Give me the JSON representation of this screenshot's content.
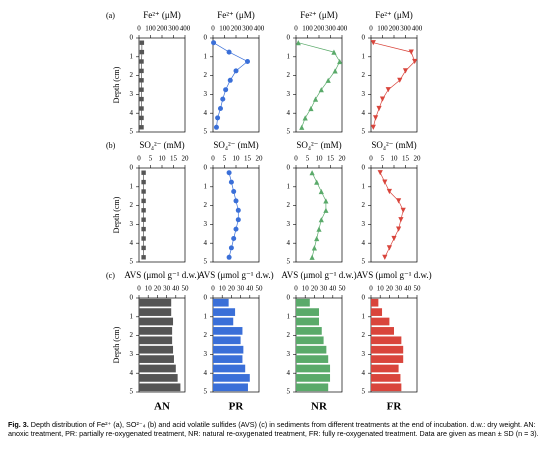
{
  "row_labels": [
    "(a)",
    "(b)",
    "(c)"
  ],
  "treatments": [
    "AN",
    "PR",
    "NR",
    "FR"
  ],
  "chart_data": [
    {
      "type": "line",
      "marker": "square",
      "color": "#555555",
      "xlabel": "Fe²⁺ (μM)",
      "ylabel": "Depth (cm)",
      "depth": [
        0.25,
        0.75,
        1.25,
        1.75,
        2.25,
        2.75,
        3.25,
        3.75,
        4.25,
        4.75
      ],
      "values": [
        25,
        25,
        22,
        22,
        22,
        22,
        22,
        22,
        22,
        22
      ],
      "xlim": [
        0,
        400
      ],
      "xticks": [
        0,
        100,
        200,
        300,
        400
      ],
      "ylim": [
        0,
        5
      ],
      "yticks": [
        0,
        1,
        2,
        3,
        4,
        5
      ]
    },
    {
      "type": "line",
      "marker": "circle",
      "color": "#3a6fd8",
      "xlabel": "Fe²⁺ (μM)",
      "depth": [
        0.25,
        0.75,
        1.25,
        1.75,
        2.25,
        2.75,
        3.25,
        3.75,
        4.25,
        4.75
      ],
      "values": [
        5,
        140,
        300,
        200,
        150,
        110,
        85,
        65,
        40,
        30
      ],
      "xlim": [
        0,
        400
      ],
      "xticks": [
        0,
        100,
        200,
        300,
        400
      ],
      "ylim": [
        0,
        5
      ],
      "yticks": [
        0,
        1,
        2,
        3,
        4,
        5
      ]
    },
    {
      "type": "line",
      "marker": "triangle-up",
      "color": "#5aaa6a",
      "xlabel": "Fe²⁺ (μM)",
      "depth": [
        0.25,
        0.75,
        1.25,
        1.75,
        2.25,
        2.75,
        3.25,
        3.75,
        4.25,
        4.75
      ],
      "values": [
        20,
        330,
        380,
        340,
        280,
        220,
        170,
        130,
        80,
        50
      ],
      "xlim": [
        0,
        400
      ],
      "xticks": [
        0,
        100,
        200,
        300,
        400
      ],
      "ylim": [
        0,
        5
      ],
      "yticks": [
        0,
        1,
        2,
        3,
        4,
        5
      ]
    },
    {
      "type": "line",
      "marker": "triangle-down",
      "color": "#d9453c",
      "xlabel": "Fe²⁺ (μM)",
      "depth": [
        0.25,
        0.75,
        1.25,
        1.75,
        2.25,
        2.75,
        3.25,
        3.75,
        4.25,
        4.75
      ],
      "values": [
        20,
        350,
        380,
        300,
        250,
        150,
        100,
        70,
        40,
        20
      ],
      "xlim": [
        0,
        400
      ],
      "xticks": [
        0,
        100,
        200,
        300,
        400
      ],
      "ylim": [
        0,
        5
      ],
      "yticks": [
        0,
        1,
        2,
        3,
        4,
        5
      ]
    },
    {
      "type": "line",
      "marker": "square",
      "color": "#555555",
      "xlabel": "SO₄²⁻ (mM)",
      "ylabel": "Depth (cm)",
      "depth": [
        0.25,
        0.75,
        1.25,
        1.75,
        2.25,
        2.75,
        3.25,
        3.75,
        4.25,
        4.75
      ],
      "values": [
        2,
        2,
        2,
        2,
        2,
        2,
        2,
        2,
        2,
        2
      ],
      "xlim": [
        0,
        20
      ],
      "xticks": [
        0,
        5,
        10,
        15,
        20
      ],
      "ylim": [
        0,
        5
      ],
      "yticks": [
        0,
        1,
        2,
        3,
        4,
        5
      ]
    },
    {
      "type": "line",
      "marker": "circle",
      "color": "#3a6fd8",
      "xlabel": "SO₄²⁻ (mM)",
      "depth": [
        0.25,
        0.75,
        1.25,
        1.75,
        2.25,
        2.75,
        3.25,
        3.75,
        4.25,
        4.75
      ],
      "values": [
        7,
        8,
        9,
        10,
        11,
        11,
        10,
        9,
        8,
        7
      ],
      "xlim": [
        0,
        20
      ],
      "xticks": [
        0,
        5,
        10,
        15,
        20
      ],
      "ylim": [
        0,
        5
      ],
      "yticks": [
        0,
        1,
        2,
        3,
        4,
        5
      ]
    },
    {
      "type": "line",
      "marker": "triangle-up",
      "color": "#5aaa6a",
      "xlabel": "SO₄²⁻ (mM)",
      "depth": [
        0.25,
        0.75,
        1.25,
        1.75,
        2.25,
        2.75,
        3.25,
        3.75,
        4.25,
        4.75
      ],
      "values": [
        7,
        9,
        11,
        13,
        13,
        11,
        10,
        9,
        8,
        7
      ],
      "xlim": [
        0,
        20
      ],
      "xticks": [
        0,
        5,
        10,
        15,
        20
      ],
      "ylim": [
        0,
        5
      ],
      "yticks": [
        0,
        1,
        2,
        3,
        4,
        5
      ]
    },
    {
      "type": "line",
      "marker": "triangle-down",
      "color": "#d9453c",
      "xlabel": "SO₄²⁻ (mM)",
      "depth": [
        0.25,
        0.75,
        1.25,
        1.75,
        2.25,
        2.75,
        3.25,
        3.75,
        4.25,
        4.75
      ],
      "values": [
        4,
        6,
        8,
        12,
        14,
        13,
        12,
        10,
        8,
        6
      ],
      "xlim": [
        0,
        20
      ],
      "xticks": [
        0,
        5,
        10,
        15,
        20
      ],
      "ylim": [
        0,
        5
      ],
      "yticks": [
        0,
        1,
        2,
        3,
        4,
        5
      ]
    },
    {
      "type": "bar",
      "color": "#555555",
      "xlabel": "AVS (μmol g⁻¹ d.w.)",
      "ylabel": "Depth (cm)",
      "depth": [
        0.25,
        0.75,
        1.25,
        1.75,
        2.25,
        2.75,
        3.25,
        3.75,
        4.25,
        4.75
      ],
      "values": [
        35,
        35,
        37,
        36,
        36,
        37,
        38,
        40,
        42,
        45
      ],
      "xlim": [
        0,
        50
      ],
      "xticks": [
        0,
        10,
        20,
        30,
        40,
        50
      ],
      "ylim": [
        0,
        5
      ],
      "yticks": [
        0,
        1,
        2,
        3,
        4,
        5
      ]
    },
    {
      "type": "bar",
      "color": "#3a6fd8",
      "xlabel": "AVS (μmol g⁻¹ d.w.)",
      "depth": [
        0.25,
        0.75,
        1.25,
        1.75,
        2.25,
        2.75,
        3.25,
        3.75,
        4.25,
        4.75
      ],
      "values": [
        17,
        24,
        22,
        32,
        30,
        33,
        32,
        35,
        40,
        38
      ],
      "xlim": [
        0,
        50
      ],
      "xticks": [
        0,
        10,
        20,
        30,
        40,
        50
      ],
      "ylim": [
        0,
        5
      ],
      "yticks": [
        0,
        1,
        2,
        3,
        4,
        5
      ]
    },
    {
      "type": "bar",
      "color": "#5aaa6a",
      "xlabel": "AVS (μmol g⁻¹ d.w.)",
      "depth": [
        0.25,
        0.75,
        1.25,
        1.75,
        2.25,
        2.75,
        3.25,
        3.75,
        4.25,
        4.75
      ],
      "values": [
        15,
        25,
        25,
        28,
        30,
        33,
        35,
        37,
        37,
        35
      ],
      "xlim": [
        0,
        50
      ],
      "xticks": [
        0,
        10,
        20,
        30,
        40,
        50
      ],
      "ylim": [
        0,
        5
      ],
      "yticks": [
        0,
        1,
        2,
        3,
        4,
        5
      ]
    },
    {
      "type": "bar",
      "color": "#d9453c",
      "xlabel": "AVS (μmol g⁻¹ d.w.)",
      "depth": [
        0.25,
        0.75,
        1.25,
        1.75,
        2.25,
        2.75,
        3.25,
        3.75,
        4.25,
        4.75
      ],
      "values": [
        8,
        12,
        20,
        25,
        33,
        35,
        35,
        30,
        32,
        33
      ],
      "xlim": [
        0,
        50
      ],
      "xticks": [
        0,
        10,
        20,
        30,
        40,
        50
      ],
      "ylim": [
        0,
        5
      ],
      "yticks": [
        0,
        1,
        2,
        3,
        4,
        5
      ]
    }
  ],
  "caption": {
    "label": "Fig. 3.",
    "text": "Depth distribution of Fe²⁺ (a), SO²⁻₄ (b) and acid volatile sulfides (AVS) (c) in sediments from different treatments at the end of incubation. d.w.: dry weight. AN: anoxic treatment, PR: partially re-oxygenated treatment, NR: natural re-oxygenated treatment, FR: fully re-oxygenated treatment. Data are given as mean ± SD (n = 3)."
  }
}
